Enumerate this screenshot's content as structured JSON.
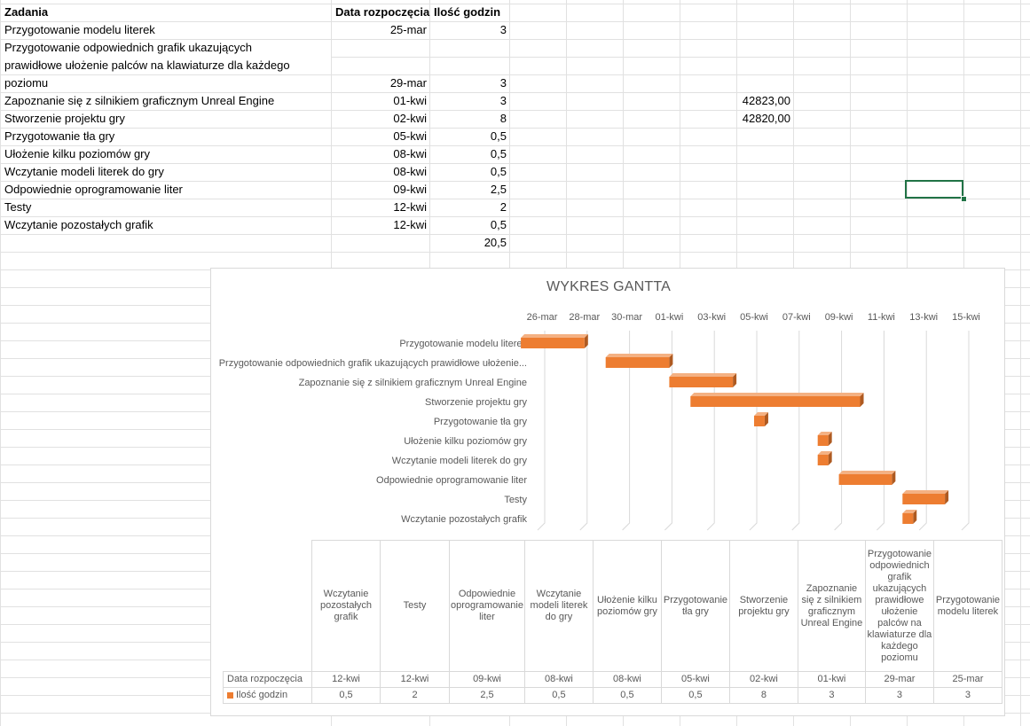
{
  "sheet": {
    "headers": {
      "task": "Zadania",
      "start": "Data rozpoczęcia",
      "hours": "Ilość godzin"
    },
    "rows": [
      {
        "task": "Przygotowanie modelu literek",
        "start": "25-mar",
        "hours": "3"
      },
      {
        "task": "Przygotowanie odpowiednich grafik ukazujących",
        "task_l2": "prawidłowe ułożenie palców na klawiaturze dla każdego",
        "task_l3": "poziomu",
        "start": "29-mar",
        "hours": "3"
      },
      {
        "task": "Zapoznanie się z silnikiem graficznym Unreal Engine",
        "start": "01-kwi",
        "hours": "3",
        "extra": "42823,00"
      },
      {
        "task": "Stworzenie projektu gry",
        "start": "02-kwi",
        "hours": "8",
        "extra": "42820,00"
      },
      {
        "task": "Przygotowanie tła gry",
        "start": "05-kwi",
        "hours": "0,5"
      },
      {
        "task": "Ułożenie kilku poziomów gry",
        "start": "08-kwi",
        "hours": "0,5"
      },
      {
        "task": "Wczytanie modeli literek do gry",
        "start": "08-kwi",
        "hours": "0,5"
      },
      {
        "task": "Odpowiednie oprogramowanie liter",
        "start": "09-kwi",
        "hours": "2,5"
      },
      {
        "task": "Testy",
        "start": "12-kwi",
        "hours": "2"
      },
      {
        "task": "Wczytanie pozostałych grafik",
        "start": "12-kwi",
        "hours": "0,5"
      }
    ],
    "total": "20,5"
  },
  "chart_data": {
    "type": "bar",
    "title": "WYKRES GANTTA",
    "x_tick_labels": [
      "26-mar",
      "28-mar",
      "30-mar",
      "01-kwi",
      "03-kwi",
      "05-kwi",
      "07-kwi",
      "09-kwi",
      "11-kwi",
      "13-kwi",
      "15-kwi"
    ],
    "x_range_days": [
      0,
      20
    ],
    "categories": [
      "Przygotowanie modelu literek",
      "Przygotowanie odpowiednich grafik ukazujących prawidłowe ułożenie...",
      "Zapoznanie się z silnikiem graficznym Unreal Engine",
      "Stworzenie projektu gry",
      "Przygotowanie tła gry",
      "Ułożenie kilku poziomów gry",
      "Wczytanie modeli literek do gry",
      "Odpowiednie oprogramowanie liter",
      "Testy",
      "Wczytanie pozostałych grafik"
    ],
    "series": [
      {
        "name": "Data rozpoczęcia",
        "values": [
          "25-mar",
          "29-mar",
          "01-kwi",
          "02-kwi",
          "05-kwi",
          "08-kwi",
          "08-kwi",
          "09-kwi",
          "12-kwi",
          "12-kwi"
        ],
        "visible": false
      },
      {
        "name": "Ilość godzin",
        "values": [
          3,
          3,
          3,
          8,
          0.5,
          0.5,
          0.5,
          2.5,
          2,
          0.5
        ],
        "color": "#ed7d31"
      }
    ],
    "start_day_values": [
      -1,
      3,
      6,
      7,
      10,
      13,
      13,
      14,
      17,
      17
    ],
    "data_table": {
      "columns": [
        "Wczytanie pozostałych grafik",
        "Testy",
        "Odpowiednie oprogramowanie liter",
        "Wczytanie modeli literek do gry",
        "Ułożenie kilku poziomów gry",
        "Przygotowanie tła gry",
        "Stworzenie projektu gry",
        "Zapoznanie się z silnikiem graficznym Unreal Engine",
        "Przygotowanie odpowiednich grafik ukazujących prawidłowe ułożenie palców na klawiaturze dla każdego poziomu",
        "Przygotowanie modelu literek"
      ],
      "rows": [
        {
          "label": "Data rozpoczęcia",
          "values": [
            "12-kwi",
            "12-kwi",
            "09-kwi",
            "08-kwi",
            "08-kwi",
            "05-kwi",
            "02-kwi",
            "01-kwi",
            "29-mar",
            "25-mar"
          ]
        },
        {
          "label": "Ilość godzin",
          "values": [
            "0,5",
            "2",
            "2,5",
            "0,5",
            "0,5",
            "0,5",
            "8",
            "3",
            "3",
            "3"
          ]
        }
      ]
    },
    "colors": {
      "bar": "#ed7d31",
      "bar_dark": "#ae5a21",
      "grid": "#d9d9d9"
    }
  }
}
